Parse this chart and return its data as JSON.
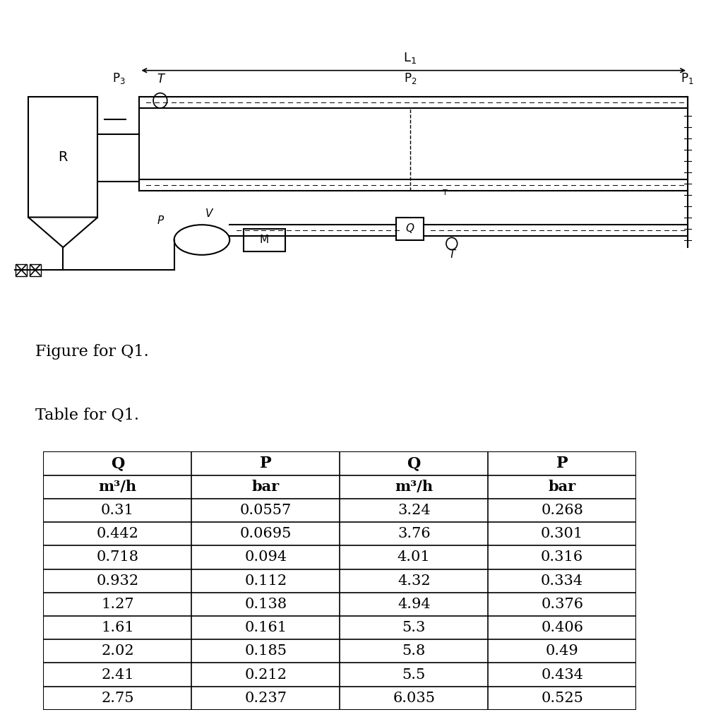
{
  "figure_label": "Figure for Q1.",
  "table_label": "Table for Q1.",
  "col_headers_row1": [
    "Q",
    "P",
    "Q",
    "P"
  ],
  "col_headers_row2": [
    "m³/h",
    "bar",
    "m³/h",
    "bar"
  ],
  "table_data": [
    [
      "0.31",
      "0.0557",
      "3.24",
      "0.268"
    ],
    [
      "0.442",
      "0.0695",
      "3.76",
      "0.301"
    ],
    [
      "0.718",
      "0.094",
      "4.01",
      "0.316"
    ],
    [
      "0.932",
      "0.112",
      "4.32",
      "0.334"
    ],
    [
      "1.27",
      "0.138",
      "4.94",
      "0.376"
    ],
    [
      "1.61",
      "0.161",
      "5.3",
      "0.406"
    ],
    [
      "2.02",
      "0.185",
      "5.8",
      "0.49"
    ],
    [
      "2.41",
      "0.212",
      "5.5",
      "0.434"
    ],
    [
      "2.75",
      "0.237",
      "6.035",
      "0.525"
    ]
  ],
  "background_color": "#ffffff",
  "text_color": "#000000",
  "line_color": "#000000",
  "font_size_label": 16,
  "font_size_table": 15,
  "font_size_header": 15
}
